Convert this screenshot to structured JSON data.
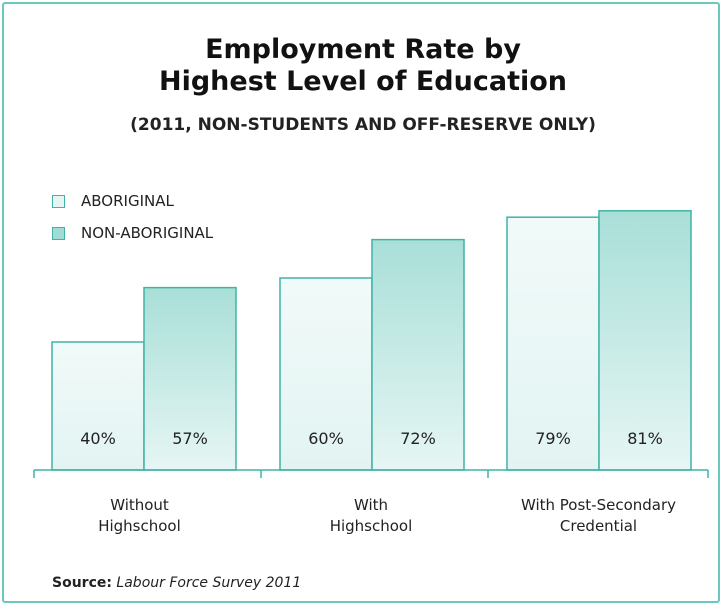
{
  "chart_data": {
    "type": "bar",
    "title_line1": "Employment Rate by",
    "title_line2": "Highest Level of Education",
    "subtitle": "(2011, NON-STUDENTS AND OFF-RESERVE ONLY)",
    "categories": [
      "Without\nHighschool",
      "With\nHighschool",
      "With Post-Secondary\nCredential"
    ],
    "series": [
      {
        "name": "ABORIGINAL",
        "values": [
          40,
          60,
          79
        ],
        "labels": [
          "40%",
          "60%",
          "79%"
        ],
        "color": "#e4f5f3"
      },
      {
        "name": "NON-ABORIGINAL",
        "values": [
          57,
          72,
          81
        ],
        "labels": [
          "57%",
          "72%",
          "81%"
        ],
        "color": "#9fdcd5"
      }
    ],
    "ylim": [
      0,
      100
    ],
    "grid": false,
    "legend_position": "top-left",
    "colors": {
      "border": "#6cc8bd",
      "bar_stroke": "#3fb3a6"
    }
  },
  "source": {
    "label": "Source:",
    "text": "Labour Force Survey 2011"
  }
}
